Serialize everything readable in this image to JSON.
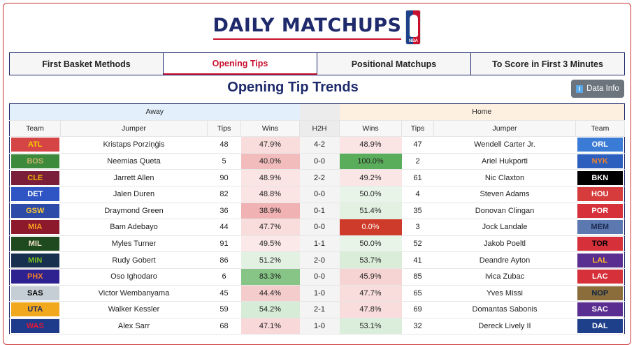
{
  "header": {
    "title": "DAILY MATCHUPS",
    "logo_text": "NBA"
  },
  "tabs": [
    {
      "label": "First Basket Methods",
      "active": false
    },
    {
      "label": "Opening Tips",
      "active": true
    },
    {
      "label": "Positional Matchups",
      "active": false
    },
    {
      "label": "To Score in First 3 Minutes",
      "active": false
    }
  ],
  "page_title": "Opening Tip Trends",
  "info_button": {
    "label": "Data Info",
    "icon": "info-icon"
  },
  "table": {
    "group_headers": {
      "away": "Away",
      "h2h": "",
      "home": "Home"
    },
    "columns": [
      "Team",
      "Jumper",
      "Tips",
      "Wins",
      "H2H",
      "Wins",
      "Tips",
      "Jumper",
      "Team"
    ],
    "rows": [
      {
        "away_team": "ATL",
        "away_bg": "#d64545",
        "away_fg": "#f5d000",
        "away_jumper": "Kristaps Porziņģis",
        "away_tips": "48",
        "away_wins": "47.9%",
        "away_win_bg": "#f9dcdc",
        "h2h": "4-2",
        "home_wins": "48.9%",
        "home_win_bg": "#fbe4e4",
        "home_tips": "47",
        "home_jumper": "Wendell Carter Jr.",
        "home_team": "ORL",
        "home_bg": "#3a7bd5",
        "home_fg": "#ffffff"
      },
      {
        "away_team": "BOS",
        "away_bg": "#3d8a3d",
        "away_fg": "#c7b46a",
        "away_jumper": "Neemias Queta",
        "away_tips": "5",
        "away_wins": "40.0%",
        "away_win_bg": "#f2bcbc",
        "h2h": "0-0",
        "home_wins": "100.0%",
        "home_win_bg": "#5aad5a",
        "home_tips": "2",
        "home_jumper": "Ariel Hukporti",
        "home_team": "NYK",
        "home_bg": "#2d5fbf",
        "home_fg": "#f58426"
      },
      {
        "away_team": "CLE",
        "away_bg": "#7a1e3a",
        "away_fg": "#f0b400",
        "away_jumper": "Jarrett Allen",
        "away_tips": "90",
        "away_wins": "48.9%",
        "away_win_bg": "#fbe4e4",
        "h2h": "2-2",
        "home_wins": "49.2%",
        "home_win_bg": "#fbe6e6",
        "home_tips": "61",
        "home_jumper": "Nic Claxton",
        "home_team": "BKN",
        "home_bg": "#000000",
        "home_fg": "#ffffff"
      },
      {
        "away_team": "DET",
        "away_bg": "#2f55c4",
        "away_fg": "#ffffff",
        "away_jumper": "Jalen Duren",
        "away_tips": "82",
        "away_wins": "48.8%",
        "away_win_bg": "#fbe4e4",
        "h2h": "0-0",
        "home_wins": "50.0%",
        "home_win_bg": "#e7f4e7",
        "home_tips": "4",
        "home_jumper": "Steven Adams",
        "home_team": "HOU",
        "home_bg": "#d63c3c",
        "home_fg": "#ffffff"
      },
      {
        "away_team": "GSW",
        "away_bg": "#2e4aa8",
        "away_fg": "#fdc62f",
        "away_jumper": "Draymond Green",
        "away_tips": "36",
        "away_wins": "38.9%",
        "away_win_bg": "#f0b2b2",
        "h2h": "0-1",
        "home_wins": "51.4%",
        "home_win_bg": "#e2f1e2",
        "home_tips": "35",
        "home_jumper": "Donovan Clingan",
        "home_team": "POR",
        "home_bg": "#d6303a",
        "home_fg": "#ffffff"
      },
      {
        "away_team": "MIA",
        "away_bg": "#8c1a2c",
        "away_fg": "#f9a01b",
        "away_jumper": "Bam Adebayo",
        "away_tips": "44",
        "away_wins": "47.7%",
        "away_win_bg": "#f9dcdc",
        "h2h": "0-0",
        "home_wins": "0.0%",
        "home_win_bg": "#cf3b2a",
        "home_tips": "3",
        "home_jumper": "Jock Landale",
        "home_team": "MEM",
        "home_bg": "#5b78b0",
        "home_fg": "#1d2a4f"
      },
      {
        "away_team": "MIL",
        "away_bg": "#1f4a1f",
        "away_fg": "#eee1c6",
        "away_jumper": "Myles Turner",
        "away_tips": "91",
        "away_wins": "49.5%",
        "away_win_bg": "#fbe8e8",
        "h2h": "1-1",
        "home_wins": "50.0%",
        "home_win_bg": "#e7f4e7",
        "home_tips": "52",
        "home_jumper": "Jakob Poeltl",
        "home_team": "TOR",
        "home_bg": "#d6303a",
        "home_fg": "#000000"
      },
      {
        "away_team": "MIN",
        "away_bg": "#17304f",
        "away_fg": "#78be20",
        "away_jumper": "Rudy Gobert",
        "away_tips": "86",
        "away_wins": "51.2%",
        "away_win_bg": "#e3f1e3",
        "h2h": "2-0",
        "home_wins": "53.7%",
        "home_win_bg": "#d9edd9",
        "home_tips": "41",
        "home_jumper": "Deandre Ayton",
        "home_team": "LAL",
        "home_bg": "#5a2d91",
        "home_fg": "#fdb927"
      },
      {
        "away_team": "PHX",
        "away_bg": "#2e2190",
        "away_fg": "#f07f2a",
        "away_jumper": "Oso Ighodaro",
        "away_tips": "6",
        "away_wins": "83.3%",
        "away_win_bg": "#86c586",
        "h2h": "0-0",
        "home_wins": "45.9%",
        "home_win_bg": "#f7d4d4",
        "home_tips": "85",
        "home_jumper": "Ivica Zubac",
        "home_team": "LAC",
        "home_bg": "#d6303a",
        "home_fg": "#ffffff"
      },
      {
        "away_team": "SAS",
        "away_bg": "#c4ced4",
        "away_fg": "#000000",
        "away_jumper": "Victor Wembanyama",
        "away_tips": "45",
        "away_wins": "44.4%",
        "away_win_bg": "#f5cccc",
        "h2h": "1-0",
        "home_wins": "47.7%",
        "home_win_bg": "#f9dcdc",
        "home_tips": "65",
        "home_jumper": "Yves Missi",
        "home_team": "NOP",
        "home_bg": "#8a6d3b",
        "home_fg": "#0c2340"
      },
      {
        "away_team": "UTA",
        "away_bg": "#f2a81d",
        "away_fg": "#1e2a5e",
        "away_jumper": "Walker Kessler",
        "away_tips": "59",
        "away_wins": "54.2%",
        "away_win_bg": "#d6ecd6",
        "h2h": "2-1",
        "home_wins": "47.8%",
        "home_win_bg": "#f9dcdc",
        "home_tips": "69",
        "home_jumper": "Domantas Sabonis",
        "home_team": "SAC",
        "home_bg": "#5a2d91",
        "home_fg": "#ffffff"
      },
      {
        "away_team": "WAS",
        "away_bg": "#1e3a8a",
        "away_fg": "#e31837",
        "away_jumper": "Alex Sarr",
        "away_tips": "68",
        "away_wins": "47.1%",
        "away_win_bg": "#f8d8d8",
        "h2h": "1-0",
        "home_wins": "53.1%",
        "home_win_bg": "#dbeedb",
        "home_tips": "32",
        "home_jumper": "Dereck Lively II",
        "home_team": "DAL",
        "home_bg": "#1e3f8a",
        "home_fg": "#ffffff"
      }
    ]
  }
}
